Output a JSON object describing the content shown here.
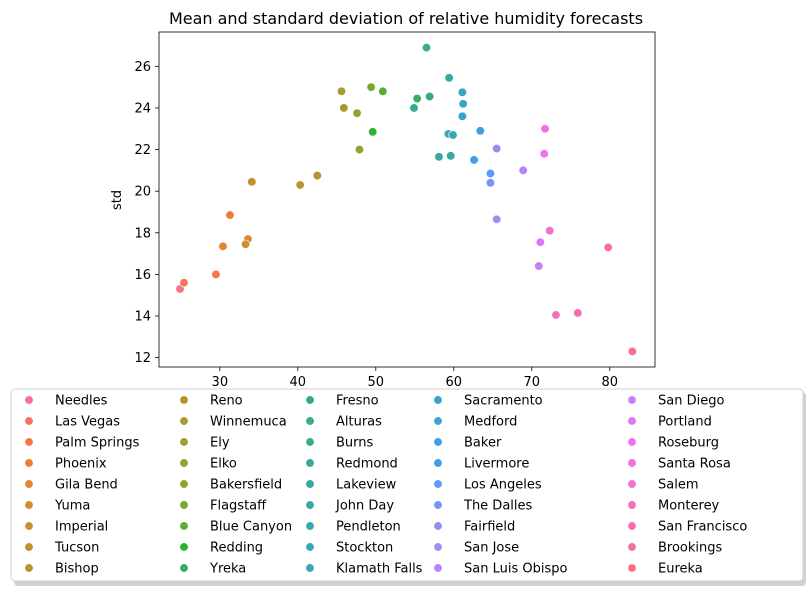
{
  "chart_data": {
    "type": "scatter",
    "title": "Mean and standard deviation of relative humidity forecasts",
    "xlabel": "",
    "ylabel": "std",
    "xlim": [
      22.2,
      85.8
    ],
    "ylim": [
      11.55,
      27.65
    ],
    "x_ticks": [
      30,
      40,
      50,
      60,
      70,
      80
    ],
    "y_ticks": [
      12,
      14,
      16,
      18,
      20,
      22,
      24,
      26
    ],
    "grid": false,
    "legend": {
      "placement": "bottom",
      "columns": 5
    },
    "series": [
      {
        "name": "Needles",
        "color": "#f77189",
        "points": [
          [
            24.9,
            15.3
          ]
        ]
      },
      {
        "name": "Las Vegas",
        "color": "#f7745f",
        "points": [
          [
            25.4,
            15.6
          ]
        ]
      },
      {
        "name": "Palm Springs",
        "color": "#f47944",
        "points": [
          [
            29.5,
            16.0
          ]
        ]
      },
      {
        "name": "Phoenix",
        "color": "#ee7e2f",
        "points": [
          [
            31.3,
            18.85
          ]
        ]
      },
      {
        "name": "Gila Bend",
        "color": "#e58432",
        "points": [
          [
            30.4,
            17.35
          ]
        ]
      },
      {
        "name": "Yuma",
        "color": "#d98932",
        "points": [
          [
            33.6,
            17.7
          ]
        ]
      },
      {
        "name": "Imperial",
        "color": "#cf8d32",
        "points": [
          [
            33.3,
            17.45
          ]
        ]
      },
      {
        "name": "Tucson",
        "color": "#c49031",
        "points": [
          [
            34.1,
            20.45
          ]
        ]
      },
      {
        "name": "Bishop",
        "color": "#ba9431",
        "points": [
          [
            40.3,
            20.3
          ]
        ]
      },
      {
        "name": "Reno",
        "color": "#b09631",
        "points": [
          [
            42.5,
            20.75
          ]
        ]
      },
      {
        "name": "Winnemuca",
        "color": "#a99a31",
        "points": [
          [
            45.6,
            24.8
          ]
        ]
      },
      {
        "name": "Ely",
        "color": "#a39c31",
        "points": [
          [
            45.9,
            24.0
          ]
        ]
      },
      {
        "name": "Elko",
        "color": "#9a9f31",
        "points": [
          [
            47.6,
            23.75
          ]
        ]
      },
      {
        "name": "Bakersfield",
        "color": "#8ea331",
        "points": [
          [
            47.9,
            22.0
          ]
        ]
      },
      {
        "name": "Flagstaff",
        "color": "#7aa731",
        "points": [
          [
            49.4,
            25.0
          ]
        ]
      },
      {
        "name": "Blue Canyon",
        "color": "#5bac32",
        "points": [
          [
            50.9,
            24.8
          ]
        ]
      },
      {
        "name": "Redding",
        "color": "#33b033",
        "points": [
          [
            49.6,
            22.85
          ]
        ]
      },
      {
        "name": "Yreka",
        "color": "#33b061",
        "points": [
          [
            55.3,
            24.45
          ]
        ]
      },
      {
        "name": "Fresno",
        "color": "#34ae78",
        "points": [
          [
            56.9,
            24.55
          ]
        ]
      },
      {
        "name": "Alturas",
        "color": "#35ad87",
        "points": [
          [
            54.9,
            24.0
          ]
        ]
      },
      {
        "name": "Burns",
        "color": "#36ac91",
        "points": [
          [
            56.5,
            26.9
          ]
        ]
      },
      {
        "name": "Redmond",
        "color": "#36ab99",
        "points": [
          [
            59.4,
            25.45
          ]
        ]
      },
      {
        "name": "Lakeview",
        "color": "#37aaa0",
        "points": [
          [
            58.1,
            21.65
          ]
        ]
      },
      {
        "name": "John Day",
        "color": "#37aaa6",
        "points": [
          [
            59.6,
            21.7
          ]
        ]
      },
      {
        "name": "Pendleton",
        "color": "#38a9ad",
        "points": [
          [
            59.3,
            22.75
          ]
        ]
      },
      {
        "name": "Stockton",
        "color": "#38a8b4",
        "points": [
          [
            59.9,
            22.7
          ]
        ]
      },
      {
        "name": "Klamath Falls",
        "color": "#39a7bc",
        "points": [
          [
            61.1,
            24.75
          ]
        ]
      },
      {
        "name": "Sacramento",
        "color": "#3aa5c4",
        "points": [
          [
            61.2,
            24.2
          ]
        ]
      },
      {
        "name": "Medford",
        "color": "#3ba3d0",
        "points": [
          [
            61.1,
            23.6
          ]
        ]
      },
      {
        "name": "Baker",
        "color": "#3ca1dd",
        "points": [
          [
            63.4,
            22.9
          ]
        ]
      },
      {
        "name": "Livermore",
        "color": "#3e9ef0",
        "points": [
          [
            62.6,
            21.5
          ]
        ]
      },
      {
        "name": "Los Angeles",
        "color": "#5d9af4",
        "points": [
          [
            64.7,
            20.85
          ]
        ]
      },
      {
        "name": "The Dalles",
        "color": "#7894f4",
        "points": [
          [
            64.7,
            20.4
          ]
        ]
      },
      {
        "name": "Fairfield",
        "color": "#908ff4",
        "points": [
          [
            65.5,
            22.05
          ]
        ]
      },
      {
        "name": "San Jose",
        "color": "#a58af4",
        "points": [
          [
            65.5,
            18.65
          ]
        ]
      },
      {
        "name": "San Luis Obispo",
        "color": "#b984f4",
        "points": [
          [
            68.9,
            21.0
          ]
        ]
      },
      {
        "name": "San Diego",
        "color": "#cb7df4",
        "points": [
          [
            70.9,
            16.4
          ]
        ]
      },
      {
        "name": "Portland",
        "color": "#dc76f4",
        "points": [
          [
            71.1,
            17.55
          ]
        ]
      },
      {
        "name": "Roseburg",
        "color": "#f16ff4",
        "points": [
          [
            71.6,
            21.8
          ]
        ]
      },
      {
        "name": "Santa Rosa",
        "color": "#f46ee4",
        "points": [
          [
            71.7,
            23.0
          ]
        ]
      },
      {
        "name": "Salem",
        "color": "#f56ed2",
        "points": [
          [
            72.3,
            18.1
          ]
        ]
      },
      {
        "name": "Monterey",
        "color": "#f56fc1",
        "points": [
          [
            73.1,
            14.05
          ]
        ]
      },
      {
        "name": "San Francisco",
        "color": "#f670b1",
        "points": [
          [
            75.9,
            14.15
          ]
        ]
      },
      {
        "name": "Brookings",
        "color": "#f6709f",
        "points": [
          [
            79.8,
            17.3
          ]
        ]
      },
      {
        "name": "Eureka",
        "color": "#f77189",
        "points": [
          [
            82.9,
            12.3
          ]
        ]
      }
    ]
  }
}
